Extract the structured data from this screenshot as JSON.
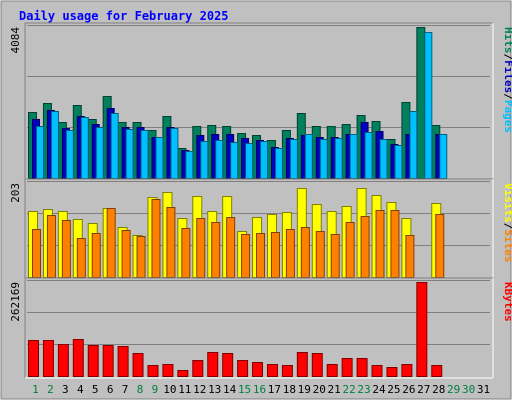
{
  "chart_data": {
    "type": "bar",
    "title": "Daily usage for February 2025",
    "categories": [
      "1",
      "2",
      "3",
      "4",
      "5",
      "6",
      "7",
      "8",
      "9",
      "10",
      "11",
      "12",
      "13",
      "14",
      "15",
      "16",
      "17",
      "18",
      "19",
      "20",
      "21",
      "22",
      "23",
      "24",
      "25",
      "26",
      "27",
      "28",
      "29",
      "30",
      "31"
    ],
    "category_colors": [
      "#008040",
      "#008040",
      "#000000",
      "#000000",
      "#000000",
      "#000000",
      "#000000",
      "#008040",
      "#008040",
      "#000000",
      "#000000",
      "#000000",
      "#000000",
      "#000000",
      "#008040",
      "#008040",
      "#000000",
      "#000000",
      "#000000",
      "#000000",
      "#000000",
      "#008040",
      "#008040",
      "#000000",
      "#000000",
      "#000000",
      "#000000",
      "#000000",
      "#008040",
      "#008040",
      "#000000"
    ],
    "panels": [
      {
        "id": "hits",
        "ymax_label": "4084",
        "ylim": [
          0,
          4084
        ],
        "labels": [
          {
            "text": "Hits",
            "color": "#00805c"
          },
          {
            "text": "/",
            "color": "#000000"
          },
          {
            "text": "Files",
            "color": "#0000c0"
          },
          {
            "text": "/",
            "color": "#000000"
          },
          {
            "text": "Pages",
            "color": "#00c0ff"
          }
        ],
        "series": [
          {
            "name": "Hits",
            "color": "#00805c",
            "values": [
              1780,
              2030,
              1520,
              1970,
              1590,
              2230,
              1510,
              1510,
              1300,
              1670,
              810,
              1400,
              1440,
              1400,
              1220,
              1160,
              1030,
              1300,
              1770,
              1400,
              1400,
              1450,
              1700,
              1540,
              1060,
              2060,
              4090,
              1440,
              0,
              0,
              0
            ]
          },
          {
            "name": "Files",
            "color": "#0000c0",
            "values": [
              1600,
              1850,
              1340,
              1690,
              1460,
              1890,
              1370,
              1370,
              1120,
              1390,
              750,
              1170,
              1180,
              1180,
              1080,
              1030,
              840,
              1080,
              1170,
              1110,
              1120,
              1190,
              1510,
              1280,
              930,
              1190,
              0,
              1200,
              0,
              0,
              0
            ]
          },
          {
            "name": "Pages",
            "color": "#00c0ff",
            "values": [
              1400,
              1800,
              1300,
              1650,
              1380,
              1750,
              1320,
              1300,
              1100,
              1350,
              740,
              1000,
              1020,
              980,
              960,
              1000,
              800,
              1050,
              1200,
              1050,
              1080,
              1190,
              1250,
              1050,
              900,
              1800,
              3950,
              1200,
              0,
              0,
              0
            ]
          }
        ]
      },
      {
        "id": "visits",
        "ymax_label": "203",
        "ylim": [
          0,
          203
        ],
        "labels": [
          {
            "text": "Visits",
            "color": "#ffff00"
          },
          {
            "text": "/",
            "color": "#000000"
          },
          {
            "text": "Sites",
            "color": "#ff8000"
          }
        ],
        "series": [
          {
            "name": "Visits",
            "color": "#ffff00",
            "values": [
              143,
              146,
              143,
              125,
              117,
              148,
              109,
              91,
              172,
              183,
              128,
              175,
              143,
              175,
              100,
              130,
              137,
              140,
              192,
              157,
              143,
              153,
              193,
              178,
              162,
              128,
              0,
              159,
              0,
              0,
              0
            ]
          },
          {
            "name": "Sites",
            "color": "#ff8000",
            "values": [
              104,
              133,
              124,
              84,
              95,
              149,
              102,
              89,
              169,
              151,
              106,
              128,
              118,
              129,
              92,
              95,
              97,
              103,
              107,
              99,
              93,
              118,
              132,
              145,
              145,
              91,
              0,
              135,
              0,
              0,
              0
            ]
          }
        ]
      },
      {
        "id": "kbytes",
        "ymax_label": "262169",
        "ylim": [
          0,
          262169
        ],
        "labels": [
          {
            "text": "KBytes",
            "color": "#ff0000"
          }
        ],
        "series": [
          {
            "name": "KBytes",
            "color": "#ff0000",
            "values": [
              100000,
              100000,
              90000,
              102000,
              86000,
              86000,
              84000,
              65000,
              31000,
              34000,
              17000,
              46000,
              67000,
              63000,
              46000,
              38000,
              34000,
              31000,
              67000,
              65000,
              34000,
              50000,
              50000,
              31000,
              25000,
              34000,
              262000,
              31000,
              0,
              0,
              0
            ]
          }
        ]
      }
    ]
  }
}
